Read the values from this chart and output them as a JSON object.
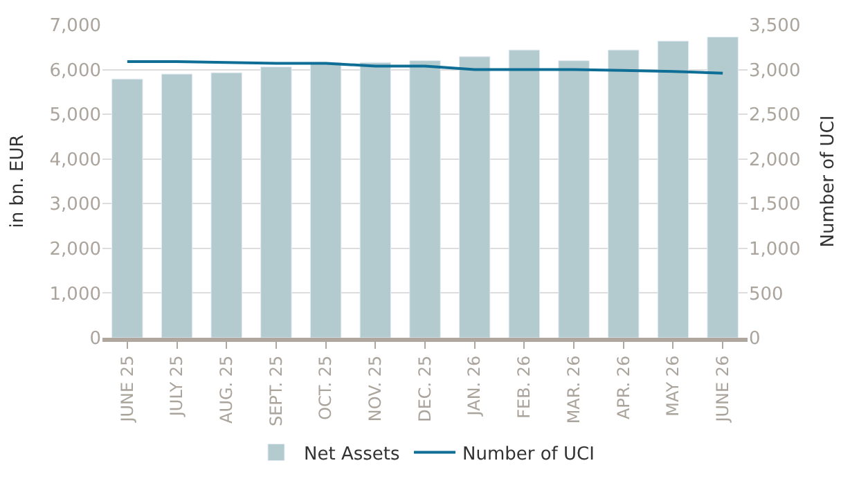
{
  "chart_data": {
    "type": "bar",
    "ylabel": "in bn. EUR",
    "y2label": "Number of UCI",
    "categories": [
      "JUNE 25",
      "JULY 25",
      "AUG. 25",
      "SEPT. 25",
      "OCT. 25",
      "NOV. 25",
      "DEC. 25",
      "JAN. 26",
      "FEB. 26",
      "MAR. 26",
      "APR. 26",
      "MAY 26",
      "JUNE 26"
    ],
    "series": [
      {
        "name": "Net Assets",
        "color": "#b3cbce",
        "values": [
          5790,
          5900,
          5930,
          6060,
          6160,
          6160,
          6200,
          6290,
          6440,
          6200,
          6440,
          6640,
          6730
        ]
      },
      {
        "name": "Number of UCI",
        "type": "line",
        "axis": "y2",
        "color": "#0e6e96",
        "values": [
          3090,
          3090,
          3080,
          3070,
          3070,
          3040,
          3040,
          3000,
          3000,
          3000,
          2990,
          2980,
          2960
        ]
      }
    ],
    "ylim": [
      0,
      7000
    ],
    "yticks": [
      0,
      {
        "value": 1000,
        "label": "1,000"
      },
      {
        "value": 2000,
        "label": "2,000"
      },
      {
        "value": 3000,
        "label": "3,000"
      },
      {
        "value": 4000,
        "label": "4,000"
      },
      {
        "value": 5000,
        "label": "5,000"
      },
      {
        "value": 6000,
        "label": "6,000"
      },
      {
        "value": 7000,
        "label": "7,000"
      }
    ],
    "y2lim": [
      0,
      3500
    ],
    "y2ticks": [
      0,
      500,
      {
        "value": 1000,
        "label": "1,000"
      },
      {
        "value": 1500,
        "label": "1,500"
      },
      {
        "value": 2000,
        "label": "2,000"
      },
      {
        "value": 2500,
        "label": "2,500"
      },
      {
        "value": 3000,
        "label": "3,000"
      },
      {
        "value": 3500,
        "label": "3,500"
      }
    ],
    "grid": "y",
    "legend": "bottom",
    "marker": "none",
    "line_style": "solid"
  }
}
